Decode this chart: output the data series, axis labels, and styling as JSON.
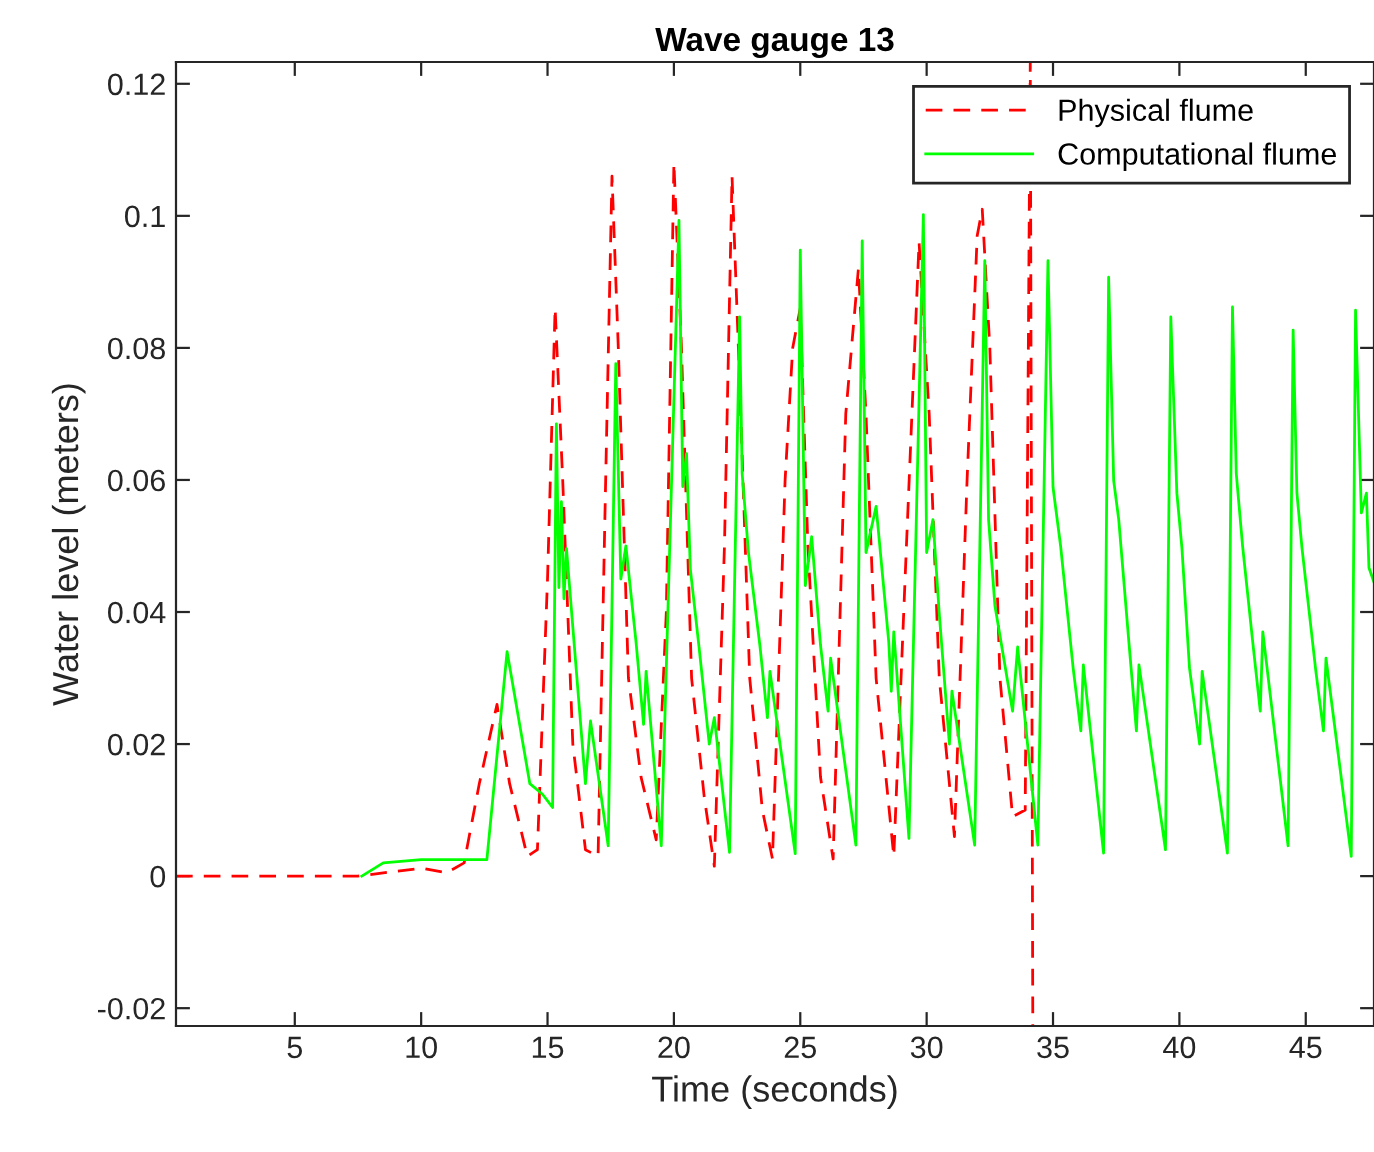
{
  "chart_data": {
    "type": "line",
    "title": "Wave gauge 13",
    "xlabel": "Time (seconds)",
    "ylabel": "Water level (meters)",
    "xlim": [
      0.3,
      47.7
    ],
    "ylim": [
      -0.0227,
      0.1233
    ],
    "xticks": [
      5,
      10,
      15,
      20,
      25,
      30,
      35,
      40,
      45
    ],
    "yticks": [
      -0.02,
      0,
      0.02,
      0.04,
      0.06,
      0.08,
      0.1,
      0.12
    ],
    "grid": false,
    "legend": "top right",
    "marker": "none",
    "series": [
      {
        "name": "Physical flume",
        "color": "#ff0000",
        "line_style": "dashed",
        "x": [
          0.3,
          7.5,
          8.5,
          10,
          11,
          11.7,
          12.3,
          13.0,
          13.5,
          14.2,
          14.6,
          15.0,
          15.3,
          15.6,
          16.0,
          16.5,
          17.0,
          17.3,
          17.55,
          17.8,
          18.2,
          18.7,
          19.3,
          19.7,
          20.0,
          20.3,
          20.7,
          21.2,
          21.6,
          22.0,
          22.3,
          22.6,
          23.0,
          23.5,
          23.9,
          24.4,
          24.7,
          25.0,
          25.3,
          25.8,
          26.3,
          26.8,
          27.3,
          27.6,
          28.0,
          28.7,
          29.2,
          29.7,
          30.1,
          30.5,
          31.1,
          31.6,
          32.0,
          32.2,
          32.5,
          32.9,
          33.4,
          33.9,
          34.1,
          34.2
        ],
        "values": [
          0,
          0,
          0.0005,
          0.0012,
          0.0005,
          0.002,
          0.014,
          0.026,
          0.014,
          0.003,
          0.004,
          0.045,
          0.086,
          0.06,
          0.02,
          0.004,
          0.003,
          0.06,
          0.106,
          0.08,
          0.03,
          0.015,
          0.0055,
          0.04,
          0.108,
          0.08,
          0.03,
          0.012,
          0.0015,
          0.05,
          0.106,
          0.075,
          0.03,
          0.01,
          0.0026,
          0.06,
          0.08,
          0.086,
          0.05,
          0.015,
          0.0026,
          0.07,
          0.092,
          0.07,
          0.03,
          0.003,
          0.05,
          0.096,
          0.07,
          0.03,
          0.006,
          0.06,
          0.097,
          0.101,
          0.08,
          0.03,
          0.009,
          0.01,
          0.1233,
          -0.0227
        ]
      },
      {
        "name": "Computational flume",
        "color": "#00ff00",
        "line_style": "solid",
        "x": [
          7.65,
          8.5,
          10,
          12.6,
          13.4,
          14.3,
          14.8,
          15.2,
          15.35,
          15.45,
          15.55,
          15.65,
          15.75,
          16.5,
          16.7,
          17.4,
          17.7,
          17.9,
          18.1,
          18.5,
          18.8,
          18.9,
          19.5,
          20.2,
          20.35,
          20.5,
          20.65,
          21.0,
          21.4,
          21.6,
          22.2,
          22.6,
          22.7,
          22.95,
          23.4,
          23.7,
          23.8,
          24.8,
          25.0,
          25.2,
          25.45,
          25.8,
          26.1,
          26.2,
          27.2,
          27.45,
          27.6,
          28.0,
          28.5,
          28.6,
          28.7,
          29.3,
          29.87,
          30.0,
          30.25,
          30.5,
          30.9,
          31.0,
          31.9,
          32.3,
          32.45,
          32.7,
          33.4,
          33.6,
          34.4,
          34.8,
          35.0,
          35.3,
          35.8,
          36.1,
          36.2,
          37.0,
          37.2,
          37.4,
          37.6,
          38.0,
          38.3,
          38.4,
          39.45,
          39.66,
          39.9,
          40.1,
          40.4,
          40.8,
          40.9,
          41.9,
          42.1,
          42.25,
          42.5,
          42.9,
          43.2,
          43.3,
          44.3,
          44.5,
          44.65,
          44.85,
          45.4,
          45.7,
          45.8,
          46.8,
          46.97,
          47.2,
          47.4,
          47.5,
          47.7
        ],
        "values": [
          0,
          0.002,
          0.0025,
          0.0025,
          0.034,
          0.014,
          0.0124,
          0.0104,
          0.0685,
          0.0437,
          0.0567,
          0.042,
          0.0496,
          0.014,
          0.0235,
          0.0046,
          0.0776,
          0.045,
          0.05,
          0.0355,
          0.023,
          0.031,
          0.0046,
          0.0993,
          0.059,
          0.064,
          0.0465,
          0.0345,
          0.02,
          0.024,
          0.0036,
          0.0847,
          0.061,
          0.049,
          0.035,
          0.024,
          0.031,
          0.0034,
          0.0948,
          0.044,
          0.0514,
          0.035,
          0.025,
          0.033,
          0.0047,
          0.0962,
          0.049,
          0.056,
          0.0355,
          0.028,
          0.037,
          0.0057,
          0.1002,
          0.049,
          0.054,
          0.0397,
          0.02,
          0.028,
          0.0047,
          0.0932,
          0.054,
          0.041,
          0.025,
          0.0347,
          0.0047,
          0.0932,
          0.0589,
          0.05,
          0.0314,
          0.022,
          0.032,
          0.0035,
          0.0907,
          0.0599,
          0.054,
          0.0355,
          0.022,
          0.032,
          0.004,
          0.0847,
          0.058,
          0.0497,
          0.0315,
          0.02,
          0.031,
          0.0035,
          0.0862,
          0.061,
          0.05,
          0.0355,
          0.025,
          0.037,
          0.0046,
          0.0827,
          0.058,
          0.0497,
          0.031,
          0.022,
          0.033,
          0.003,
          0.0857,
          0.055,
          0.058,
          0.0467,
          0.0445
        ]
      }
    ]
  }
}
